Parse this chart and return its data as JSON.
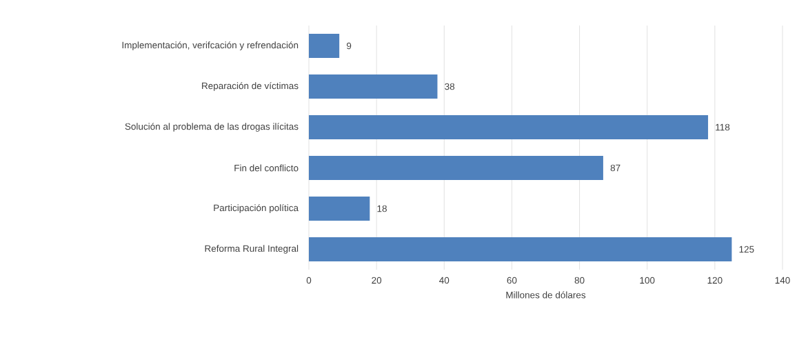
{
  "chart_data": {
    "type": "bar",
    "orientation": "horizontal",
    "xlabel": "Millones de dólares",
    "categories": [
      "Implementación, verifcación y refrendación",
      "Reparación de víctimas",
      "Solución al problema de las drogas ilícitas",
      "Fin del conflicto",
      "Participación política",
      "Reforma Rural Integral"
    ],
    "values": [
      9,
      38,
      118,
      87,
      18,
      125
    ],
    "color": "#4f81bd",
    "xlim": [
      0,
      140
    ],
    "xticks": [
      0,
      20,
      40,
      60,
      80,
      100,
      120,
      140
    ],
    "grid": "x",
    "data_labels": true
  }
}
